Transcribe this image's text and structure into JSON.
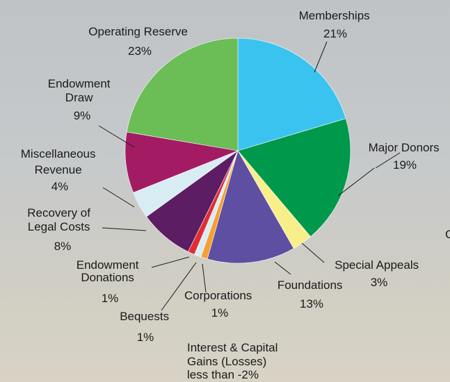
{
  "chart_data": {
    "type": "pie",
    "slices": [
      {
        "name": "Memberships",
        "value": 21,
        "label": "21%",
        "color": "#3bc3ef"
      },
      {
        "name": "Major Donors",
        "value": 19,
        "label": "19%",
        "color": "#00984a"
      },
      {
        "name": "Special Appeals",
        "value": 3,
        "label": "3%",
        "color": "#f8ef8b"
      },
      {
        "name": "Foundations",
        "value": 13,
        "label": "13%",
        "color": "#5e4fa2"
      },
      {
        "name": "Corporations",
        "value": 1,
        "label": "1%",
        "color": "#f5a037"
      },
      {
        "name": "Bequests",
        "value": 1,
        "label": "1%",
        "color": "#d8ecf4"
      },
      {
        "name": "Endowment Donations",
        "value": 1,
        "label": "1%",
        "color": "#e12c33"
      },
      {
        "name": "Recovery of Legal Costs",
        "value": 8,
        "label": "8%",
        "color": "#5d1d63"
      },
      {
        "name": "Miscellaneous Revenue",
        "value": 4,
        "label": "4%",
        "color": "#d8ecf4"
      },
      {
        "name": "Endowment Draw",
        "value": 9,
        "label": "9%",
        "color": "#a31c63"
      },
      {
        "name": "Operating Reserve",
        "value": 23,
        "label": "23%",
        "color": "#6bbd56"
      }
    ],
    "footnote_name": "Interest & Capital Gains (Losses)",
    "footnote_value": "less than -2%",
    "edge_fragment": "C"
  }
}
